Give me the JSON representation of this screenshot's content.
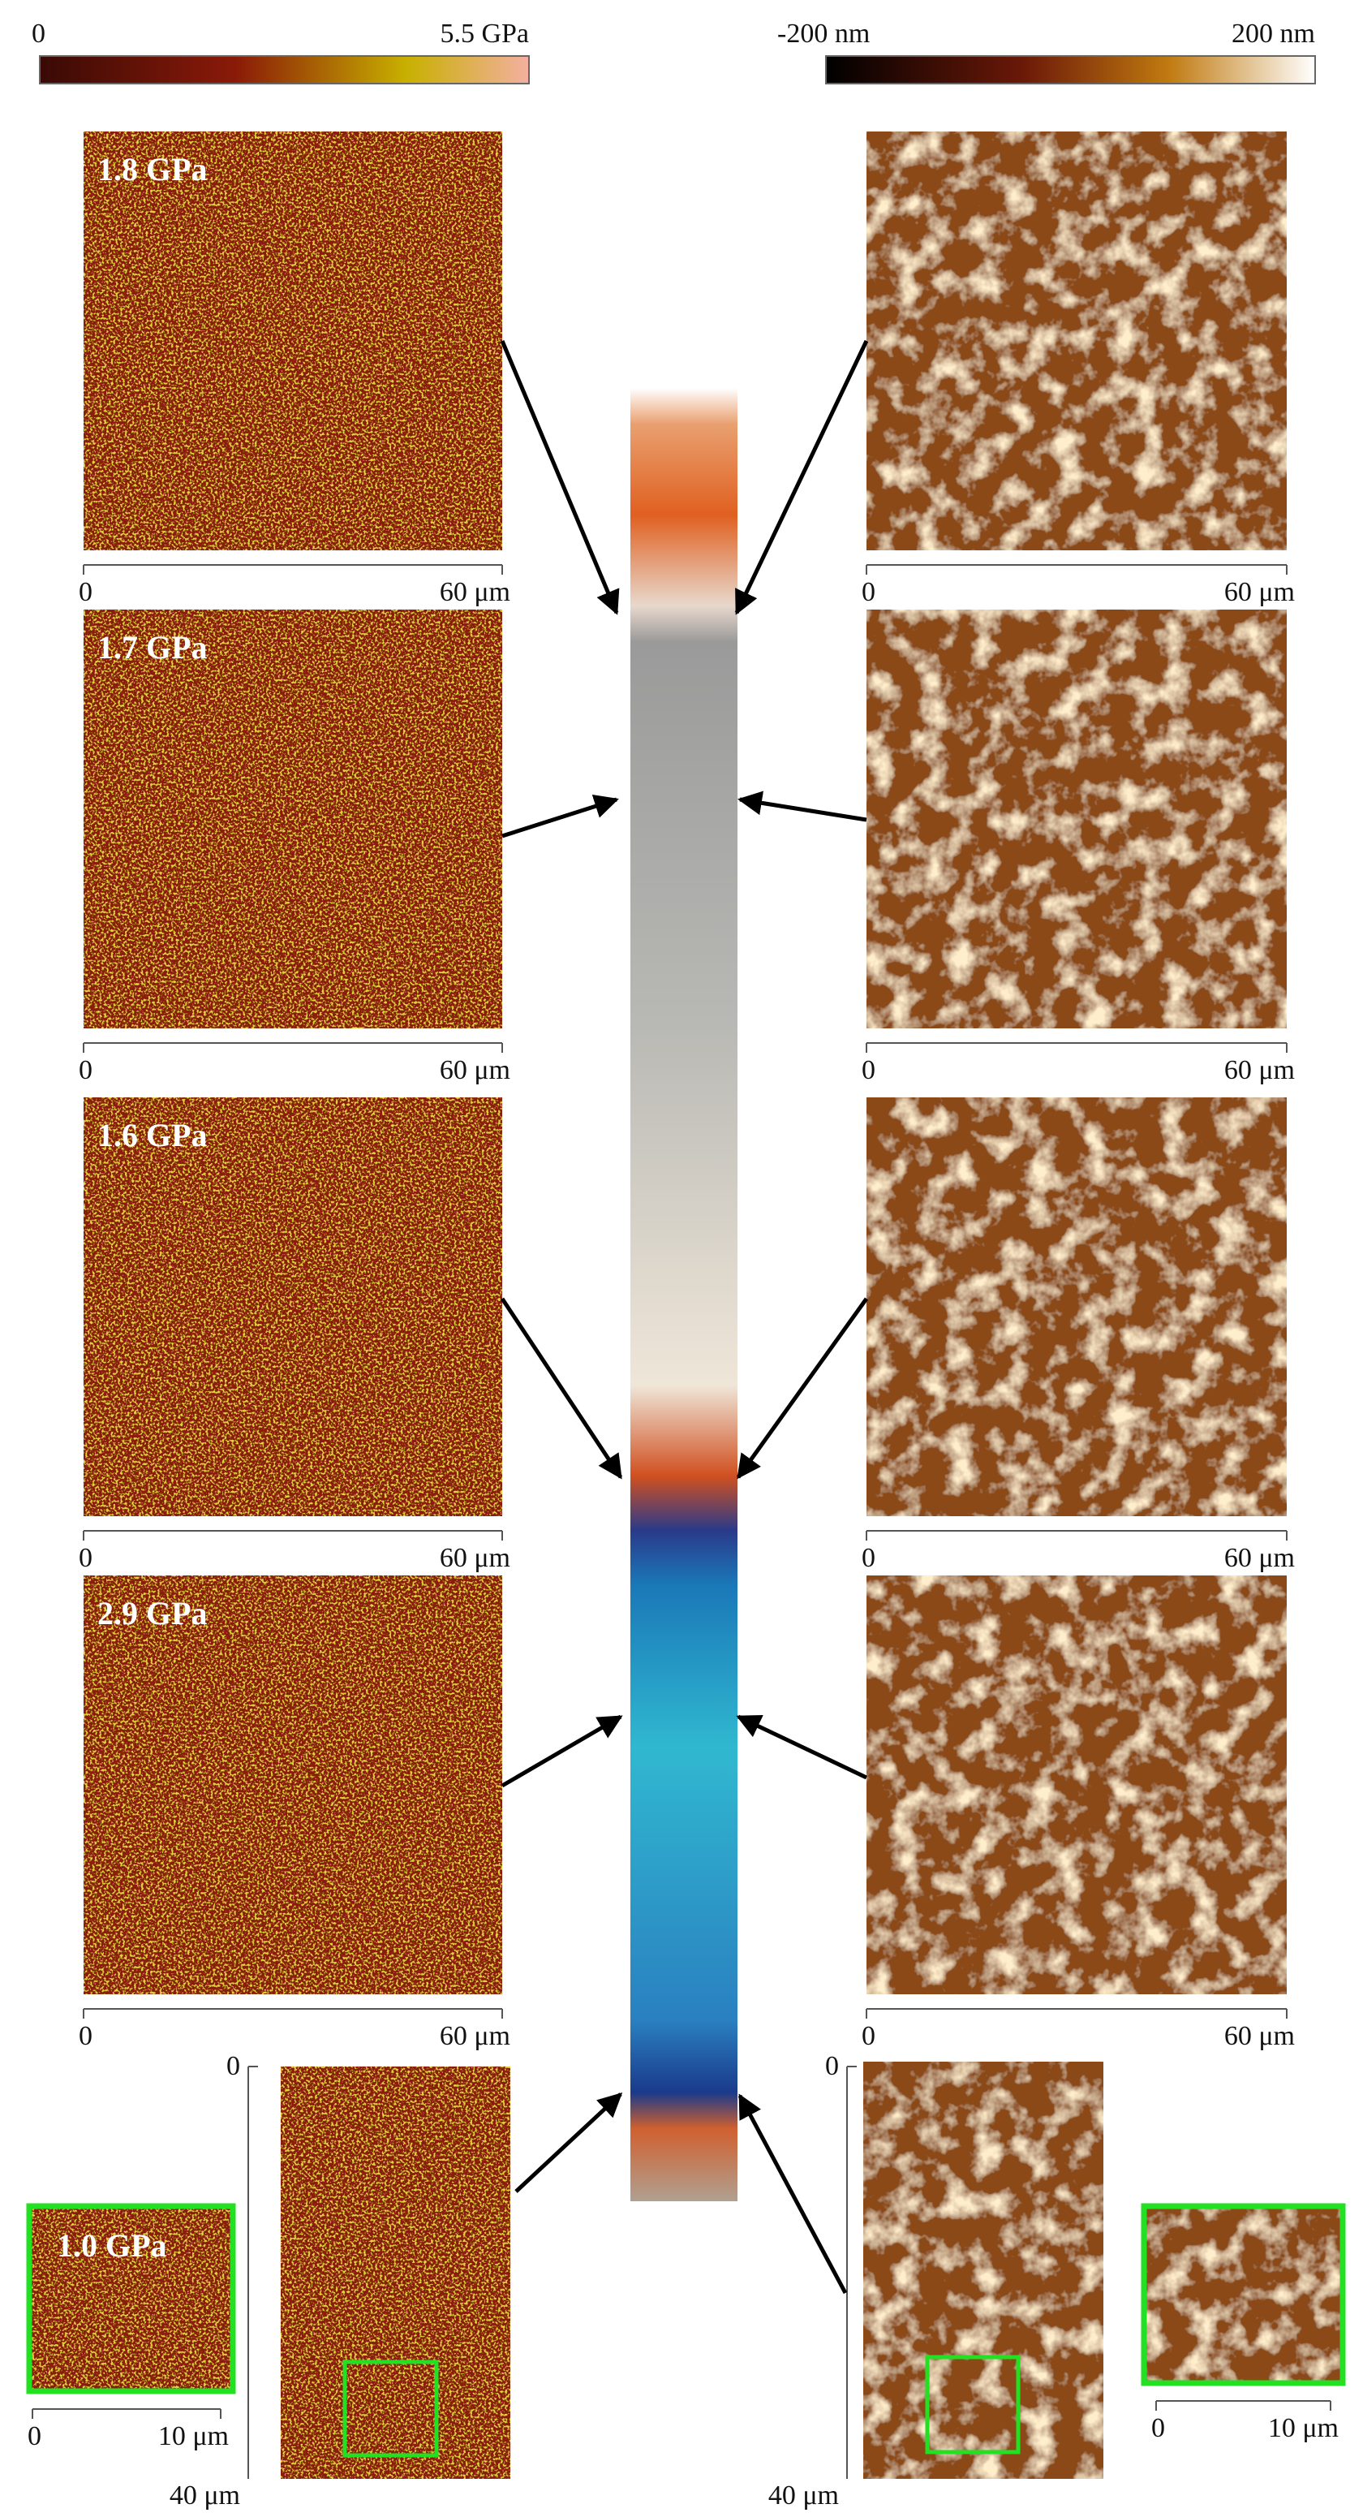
{
  "colorbars": [
    {
      "min": "0",
      "max": "5.5 GPa"
    },
    {
      "min": "-200 nm",
      "max": "200 nm"
    }
  ],
  "rows": [
    {
      "modulus": "1.8 GPa",
      "left_start": "0",
      "left_end": "60 μm",
      "right_start": "0",
      "right_end": "60 μm"
    },
    {
      "modulus": "1.7 GPa",
      "left_start": "0",
      "left_end": "60 μm",
      "right_start": "0",
      "right_end": "60 μm"
    },
    {
      "modulus": "1.6 GPa",
      "left_start": "0",
      "left_end": "60 μm",
      "right_start": "0",
      "right_end": "60 μm"
    },
    {
      "modulus": "2.9 GPa",
      "left_start": "0",
      "left_end": "60 μm",
      "right_start": "0",
      "right_end": "60 μm"
    }
  ],
  "bottom": {
    "modulus": "1.0 GPa",
    "left": {
      "axis_start": "0",
      "axis_end": "40 μm",
      "inset_start": "0",
      "inset_end": "10 μm"
    },
    "right": {
      "axis_start": "0",
      "axis_end": "40 μm",
      "inset_start": "0",
      "inset_end": "10 μm"
    }
  }
}
